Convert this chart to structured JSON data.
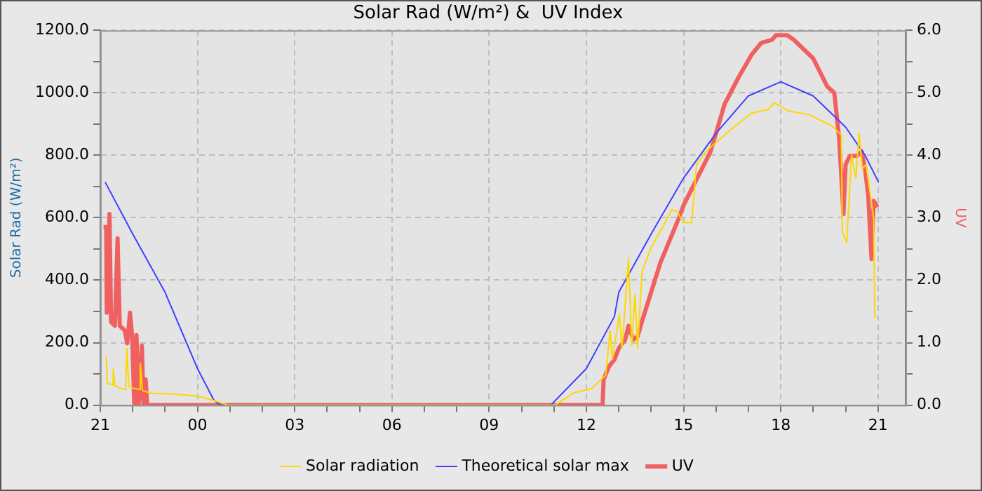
{
  "chart_data": {
    "type": "line",
    "title": "Solar Rad (W/m²) &  UV Index",
    "ylabel": "Solar Rad (W/m²)",
    "y2label": "UV",
    "xlim": [
      "--01-01T21:00",
      "--01-02T21:51"
    ],
    "xticks": [
      {
        "value": "--01-01T21:00",
        "label": "21"
      },
      {
        "value": "--01-01T22:00",
        "label": null
      },
      {
        "value": "--01-01T23:00",
        "label": null
      },
      {
        "value": "--01-02T00:00",
        "label": "00"
      },
      {
        "value": "--01-02T01:00",
        "label": null
      },
      {
        "value": "--01-02T02:00",
        "label": null
      },
      {
        "value": "--01-02T03:00",
        "label": "03"
      },
      {
        "value": "--01-02T04:00",
        "label": null
      },
      {
        "value": "--01-02T05:00",
        "label": null
      },
      {
        "value": "--01-02T06:00",
        "label": "06"
      },
      {
        "value": "--01-02T07:00",
        "label": null
      },
      {
        "value": "--01-02T08:00",
        "label": null
      },
      {
        "value": "--01-02T09:00",
        "label": "09"
      },
      {
        "value": "--01-02T10:00",
        "label": null
      },
      {
        "value": "--01-02T11:00",
        "label": null
      },
      {
        "value": "--01-02T12:00",
        "label": "12"
      },
      {
        "value": "--01-02T13:00",
        "label": null
      },
      {
        "value": "--01-02T14:00",
        "label": null
      },
      {
        "value": "--01-02T15:00",
        "label": "15"
      },
      {
        "value": "--01-02T16:00",
        "label": null
      },
      {
        "value": "--01-02T17:00",
        "label": null
      },
      {
        "value": "--01-02T18:00",
        "label": "18"
      },
      {
        "value": "--01-02T19:00",
        "label": null
      },
      {
        "value": "--01-02T20:00",
        "label": null
      },
      {
        "value": "--01-02T21:00",
        "label": "21"
      }
    ],
    "ylim": [
      0,
      1200
    ],
    "yticks": [
      {
        "value": 0,
        "label": "0.0"
      },
      {
        "value": 100,
        "label": null
      },
      {
        "value": 200,
        "label": "200.0"
      },
      {
        "value": 300,
        "label": null
      },
      {
        "value": 400,
        "label": "400.0"
      },
      {
        "value": 500,
        "label": null
      },
      {
        "value": 600,
        "label": "600.0"
      },
      {
        "value": 700,
        "label": null
      },
      {
        "value": 800,
        "label": "800.0"
      },
      {
        "value": 900,
        "label": null
      },
      {
        "value": 1000,
        "label": "1000.0"
      },
      {
        "value": 1100,
        "label": null
      },
      {
        "value": 1200,
        "label": "1200.0"
      }
    ],
    "y2lim": [
      0,
      6
    ],
    "y2ticks": [
      {
        "value": 0,
        "label": "0.0"
      },
      {
        "value": 0.5,
        "label": null
      },
      {
        "value": 1,
        "label": "1.0"
      },
      {
        "value": 1.5,
        "label": null
      },
      {
        "value": 2,
        "label": "2.0"
      },
      {
        "value": 2.5,
        "label": null
      },
      {
        "value": 3,
        "label": "3.0"
      },
      {
        "value": 3.5,
        "label": null
      },
      {
        "value": 4,
        "label": "4.0"
      },
      {
        "value": 4.5,
        "label": null
      },
      {
        "value": 5,
        "label": "5.0"
      },
      {
        "value": 5.5,
        "label": null
      },
      {
        "value": 6,
        "label": "6.0"
      }
    ],
    "grid": true,
    "legend": "bottom",
    "marker": "none",
    "line_style": "solid",
    "series": [
      {
        "name": "Solar radiation",
        "color": "#ffd700",
        "x": [
          "--01-01T21:11",
          "--01-01T21:13",
          "--01-01T21:23",
          "--01-01T21:24",
          "--01-01T21:27",
          "--01-01T21:36",
          "--01-01T21:47",
          "--01-01T21:49",
          "--01-01T21:53",
          "--01-01T22:00",
          "--01-01T22:12",
          "--01-01T22:14",
          "--01-01T22:18",
          "--01-01T22:36",
          "--01-01T23:12",
          "--01-01T23:48",
          "--01-02T00:10",
          "--01-02T00:36",
          "--01-02T00:56",
          "--01-02T11:02",
          "--01-02T11:36",
          "--01-02T12:10",
          "--01-02T12:36",
          "--01-02T12:44",
          "--01-02T12:48",
          "--01-02T13:01",
          "--01-02T13:06",
          "--01-02T13:18",
          "--01-02T13:24",
          "--01-02T13:30",
          "--01-02T13:35",
          "--01-02T13:43",
          "--01-02T14:00",
          "--01-02T14:26",
          "--01-02T14:38",
          "--01-02T14:48",
          "--01-02T15:00",
          "--01-02T15:15",
          "--01-02T15:24",
          "--01-02T15:42",
          "--01-02T16:24",
          "--01-02T17:06",
          "--01-02T17:36",
          "--01-02T17:48",
          "--01-02T18:14",
          "--01-02T18:54",
          "--01-02T19:13",
          "--01-02T19:30",
          "--01-02T19:36",
          "--01-02T19:52",
          "--01-02T19:54",
          "--01-02T20:02",
          "--01-02T20:11",
          "--01-02T20:19",
          "--01-02T20:25",
          "--01-02T20:31",
          "--01-02T20:38",
          "--01-02T20:46",
          "--01-02T20:52",
          "--01-02T20:54",
          "--01-02T20:57"
        ],
        "values": [
          155,
          70,
          65,
          116,
          62,
          55,
          50,
          182,
          60,
          55,
          50,
          133,
          47,
          38,
          36,
          31,
          25,
          12,
          0,
          0,
          39,
          53,
          96,
          240,
          146,
          290,
          182,
          469,
          190,
          354,
          182,
          426,
          505,
          585,
          625,
          620,
          584,
          584,
          770,
          813,
          877,
          935,
          946,
          968,
          942,
          929,
          912,
          899,
          892,
          865,
          555,
          520,
          800,
          727,
          870,
          757,
          770,
          671,
          598,
          284,
          280
        ]
      },
      {
        "name": "Theoretical solar max",
        "color": "#4040ff",
        "x": [
          "--01-01T21:09",
          "--01-01T22:00",
          "--01-01T23:00",
          "--01-02T00:00",
          "--01-02T00:30",
          "--01-02T00:42",
          "--01-02T10:54",
          "--01-02T12:00",
          "--01-02T12:52",
          "--01-02T13:00",
          "--01-02T14:00",
          "--01-02T15:00",
          "--01-02T16:00",
          "--01-02T17:00",
          "--01-02T18:00",
          "--01-02T19:00",
          "--01-02T20:00",
          "--01-02T20:36",
          "--01-02T21:01"
        ],
        "values": [
          714,
          548,
          361,
          117,
          17,
          0,
          0,
          117,
          284,
          361,
          548,
          727,
          870,
          990,
          1035,
          990,
          890,
          800,
          714
        ]
      },
      {
        "name": "UV",
        "color": "#f06060",
        "axis": "y2",
        "x": [
          "--01-01T21:06",
          "--01-01T21:11",
          "--01-01T21:12",
          "--01-01T21:17",
          "--01-01T21:20",
          "--01-01T21:27",
          "--01-01T21:32",
          "--01-01T21:36",
          "--01-01T21:45",
          "--01-01T21:50",
          "--01-01T21:55",
          "--01-01T21:59",
          "--01-01T22:03",
          "--01-01T22:07",
          "--01-01T22:11",
          "--01-01T22:17",
          "--01-01T22:20",
          "--01-01T22:24",
          "--01-01T22:27",
          "--01-02T12:30",
          "--01-02T12:32",
          "--01-02T12:42",
          "--01-02T12:52",
          "--01-02T13:00",
          "--01-02T13:12",
          "--01-02T13:18",
          "--01-02T13:27",
          "--01-02T13:35",
          "--01-02T13:43",
          "--01-02T14:17",
          "--01-02T14:51",
          "--01-02T15:00",
          "--01-02T15:50",
          "--01-02T16:16",
          "--01-02T16:42",
          "--01-02T17:06",
          "--01-02T17:24",
          "--01-02T17:44",
          "--01-02T17:51",
          "--01-02T18:12",
          "--01-02T18:24",
          "--01-02T18:36",
          "--01-02T19:00",
          "--01-02T19:26",
          "--01-02T19:39",
          "--01-02T19:48",
          "--01-02T19:52",
          "--01-02T19:56",
          "--01-02T20:00",
          "--01-02T20:08",
          "--01-02T20:21",
          "--01-02T20:30",
          "--01-02T20:36",
          "--01-02T20:42",
          "--01-02T20:48",
          "--01-02T20:52",
          "--01-02T20:59"
        ],
        "values": [
          2.85,
          2.85,
          1.48,
          3.06,
          1.33,
          1.27,
          2.67,
          1.27,
          1.2,
          0.99,
          1.48,
          1.1,
          0,
          1.12,
          0,
          0.95,
          0,
          0.41,
          0,
          0,
          0.41,
          0.62,
          0.73,
          0.91,
          1.05,
          1.27,
          1.05,
          1.1,
          1.34,
          2.28,
          2.99,
          3.2,
          4.06,
          4.82,
          5.25,
          5.61,
          5.8,
          5.85,
          5.92,
          5.92,
          5.85,
          5.75,
          5.55,
          5.1,
          5.0,
          4.28,
          3.68,
          3.06,
          3.85,
          3.99,
          3.99,
          4.06,
          3.78,
          3.35,
          2.34,
          3.27,
          3.17
        ]
      }
    ]
  }
}
